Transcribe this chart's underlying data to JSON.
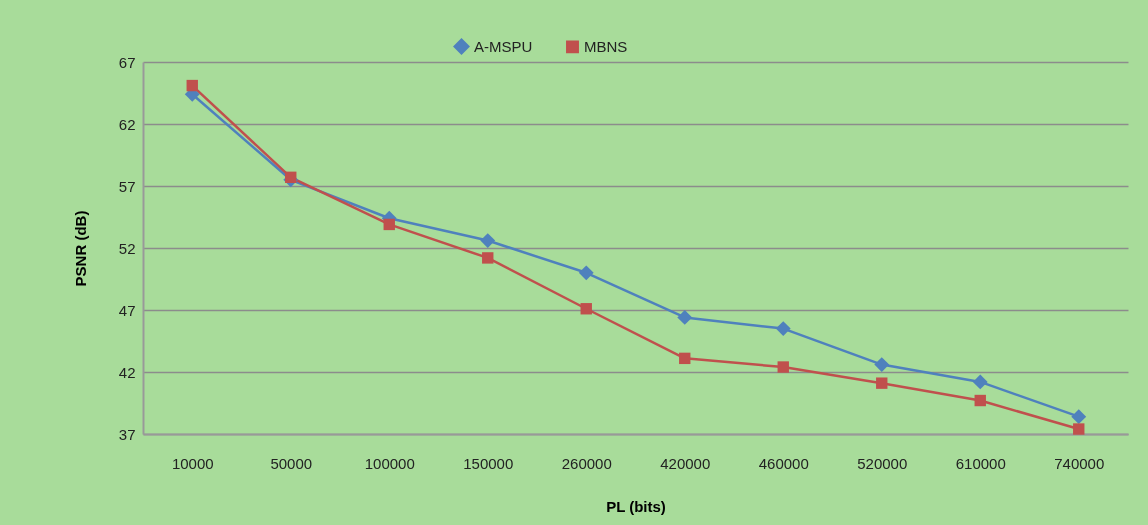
{
  "chart_data": {
    "type": "line",
    "xlabel": "PL (bits)",
    "ylabel": "PSNR (dB)",
    "categories": [
      "10000",
      "50000",
      "100000",
      "150000",
      "260000",
      "420000",
      "460000",
      "520000",
      "610000",
      "740000"
    ],
    "series": [
      {
        "name": "A-MSPU",
        "color": "#4f81bd",
        "marker": "diamond",
        "values": [
          64.4,
          57.5,
          54.4,
          52.6,
          50.0,
          46.4,
          45.5,
          42.6,
          41.2,
          38.4
        ]
      },
      {
        "name": "MBNS",
        "color": "#c0504d",
        "marker": "square",
        "values": [
          65.1,
          57.7,
          53.9,
          51.2,
          47.1,
          43.1,
          42.4,
          41.1,
          39.7,
          37.4
        ]
      }
    ],
    "ylim": [
      37,
      67
    ],
    "yticks": [
      37,
      42,
      47,
      52,
      57,
      62,
      67
    ],
    "grid": "y",
    "legend": "top",
    "line_style": "solid"
  }
}
